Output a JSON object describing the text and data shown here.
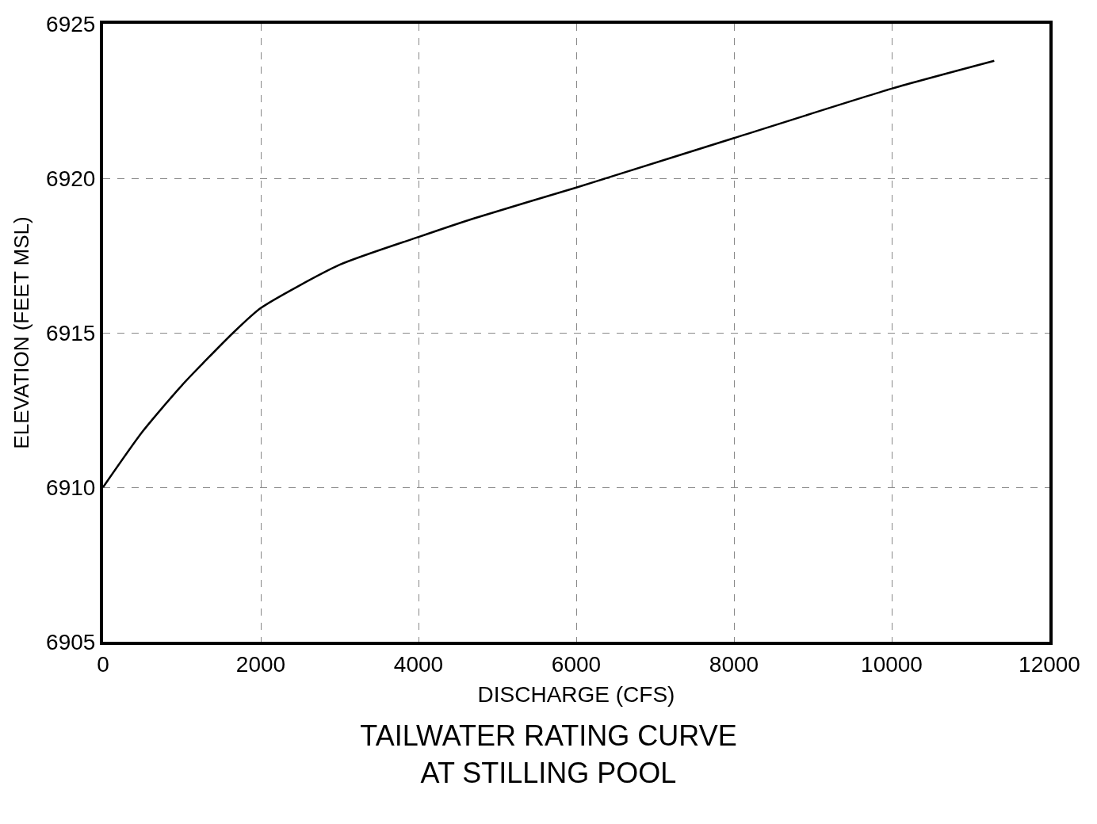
{
  "chart_data": {
    "type": "line",
    "title": "TAILWATER RATING CURVE\nAT STILLING POOL",
    "xlabel": "DISCHARGE (CFS)",
    "ylabel": "ELEVATION (FEET MSL)",
    "x": [
      0,
      500,
      1000,
      1650,
      2000,
      3000,
      4000,
      4700,
      6000,
      6500,
      8000,
      10000,
      11300
    ],
    "series": [
      {
        "color": "#000000",
        "values": [
          6910,
          6911.8,
          6913.3,
          6915,
          6915.8,
          6917.2,
          6918.1,
          6918.7,
          6919.7,
          6920.1,
          6921.3,
          6922.9,
          6923.8
        ]
      }
    ],
    "xlim": [
      0,
      12000
    ],
    "xticks": [
      0,
      2000,
      4000,
      6000,
      8000,
      10000,
      12000
    ],
    "ylim": [
      6905,
      6925
    ],
    "yticks": [
      6905,
      6910,
      6915,
      6920,
      6925
    ],
    "grid": true,
    "marker": "none",
    "line_style": "solid"
  }
}
